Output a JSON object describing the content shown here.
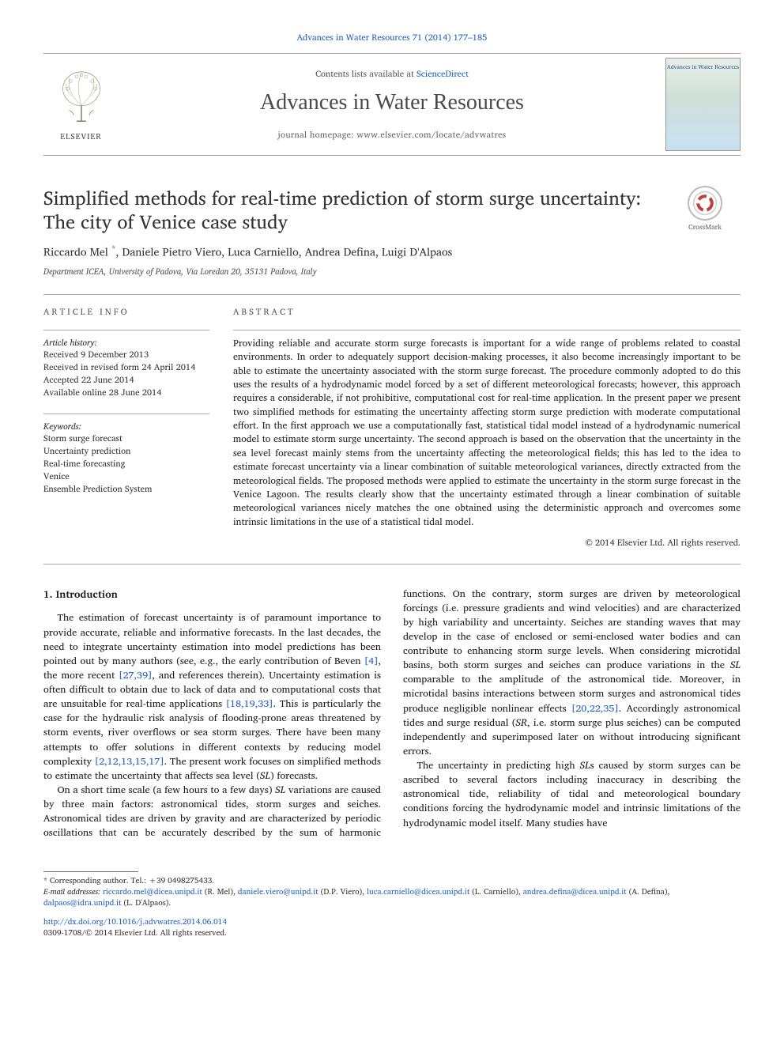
{
  "top_citation": "Advances in Water Resources 71 (2014) 177–185",
  "header": {
    "contents_prefix": "Contents lists available at ",
    "contents_link": "ScienceDirect",
    "journal": "Advances in Water Resources",
    "homepage_prefix": "journal homepage: ",
    "homepage_url": "www.elsevier.com/locate/advwatres",
    "publisher": "ELSEVIER",
    "cover_text": "Advances in Water Resources"
  },
  "crossmark_label": "CrossMark",
  "title": "Simplified methods for real-time prediction of storm surge uncertainty: The city of Venice case study",
  "authors_html": "Riccardo Mel <sup class=\"star\">*</sup>, Daniele Pietro Viero, Luca Carniello, Andrea Defina, Luigi D'Alpaos",
  "affiliation": "Department ICEA, University of Padova, Via Loredan 20, 35131 Padova, Italy",
  "article_info": {
    "heading": "ARTICLE INFO",
    "history_label": "Article history:",
    "history": [
      "Received 9 December 2013",
      "Received in revised form 24 April 2014",
      "Accepted 22 June 2014",
      "Available online 28 June 2014"
    ],
    "keywords_label": "Keywords:",
    "keywords": [
      "Storm surge forecast",
      "Uncertainty prediction",
      "Real-time forecasting",
      "Venice",
      "Ensemble Prediction System"
    ]
  },
  "abstract": {
    "heading": "ABSTRACT",
    "text": "Providing reliable and accurate storm surge forecasts is important for a wide range of problems related to coastal environments. In order to adequately support decision-making processes, it also become increasingly important to be able to estimate the uncertainty associated with the storm surge forecast. The procedure commonly adopted to do this uses the results of a hydrodynamic model forced by a set of different meteorological forecasts; however, this approach requires a considerable, if not prohibitive, computational cost for real-time application. In the present paper we present two simplified methods for estimating the uncertainty affecting storm surge prediction with moderate computational effort. In the first approach we use a computationally fast, statistical tidal model instead of a hydrodynamic numerical model to estimate storm surge uncertainty. The second approach is based on the observation that the uncertainty in the sea level forecast mainly stems from the uncertainty affecting the meteorological fields; this has led to the idea to estimate forecast uncertainty via a linear combination of suitable meteorological variances, directly extracted from the meteorological fields. The proposed methods were applied to estimate the uncertainty in the storm surge forecast in the Venice Lagoon. The results clearly show that the uncertainty estimated through a linear combination of suitable meteorological variances nicely matches the one obtained using the deterministic approach and overcomes some intrinsic limitations in the use of a statistical tidal model.",
    "copyright": "© 2014 Elsevier Ltd. All rights reserved."
  },
  "intro": {
    "heading": "1. Introduction",
    "p1": "The estimation of forecast uncertainty is of paramount importance to provide accurate, reliable and informative forecasts. In the last decades, the need to integrate uncertainty estimation into model predictions has been pointed out by many authors (see, e.g., the early contribution of Beven <span class=\"ref-link\">[4]</span>, the more recent <span class=\"ref-link\">[27,39]</span>, and references therein). Uncertainty estimation is often difficult to obtain due to lack of data and to computational costs that are unsuitable for real-time applications <span class=\"ref-link\">[18,19,33]</span>. This is particularly the case for the hydraulic risk analysis of flooding-prone areas threatened by storm events, river overflows or sea storm surges. There have been many attempts to offer solutions in different contexts by reducing model complexity <span class=\"ref-link\">[2,12,13,15,17]</span>. The present work focuses on simplified methods to estimate the uncertainty that affects sea level (<i>SL</i>) forecasts.",
    "p2": "On a short time scale (a few hours to a few days) <i>SL</i> variations are caused by three main factors: astronomical tides, storm surges and seiches. Astronomical tides are driven by gravity and are characterized by periodic oscillations that can be accurately described by the sum of harmonic functions. On the contrary, storm surges are driven by meteorological forcings (i.e. pressure gradients and wind velocities) and are characterized by high variability and uncertainty. Seiches are standing waves that may develop in the case of enclosed or semi-enclosed water bodies and can contribute to enhancing storm surge levels. When considering microtidal basins, both storm surges and seiches can produce variations in the <i>SL</i> comparable to the amplitude of the astronomical tide. Moreover, in microtidal basins interactions between storm surges and astronomical tides produce negligible nonlinear effects <span class=\"ref-link\">[20,22,35]</span>. Accordingly astronomical tides and surge residual (<i>SR</i>, i.e. storm surge plus seiches) can be computed independently and superimposed later on without introducing significant errors.",
    "p3": "The uncertainty in predicting high <i>SL</i>s caused by storm surges can be ascribed to several factors including inaccuracy in describing the astronomical tide, reliability of tidal and meteorological boundary conditions forcing the hydrodynamic model and intrinsic limitations of the hydrodynamic model itself. Many studies have"
  },
  "footnotes": {
    "corr": "* Corresponding author. Tel.: +39 0498275433.",
    "emails_label": "E-mail addresses:",
    "emails": "riccardo.mel@dicea.unipd.it (R. Mel), daniele.viero@unipd.it (D.P. Viero), luca.carniello@dicea.unipd.it (L. Carniello), andrea.defina@dicea.unipd.it (A. Defina), dalpaos@idra.unipd.it (L. D'Alpaos).",
    "doi": "http://dx.doi.org/10.1016/j.advwatres.2014.06.014",
    "issn_copyright": "0309-1708/© 2014 Elsevier Ltd. All rights reserved."
  },
  "colors": {
    "link": "#2060c0",
    "text": "#1a1a1a",
    "rule": "#aaaaaa",
    "muted": "#555555"
  }
}
